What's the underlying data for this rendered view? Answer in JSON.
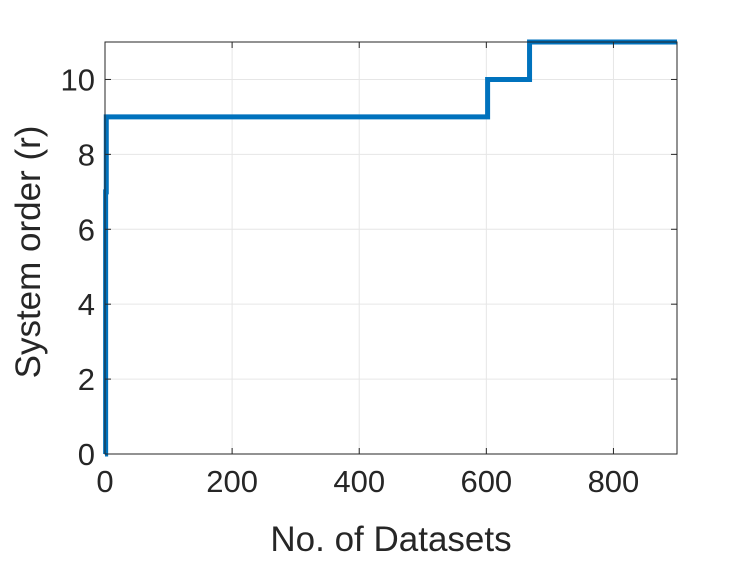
{
  "chart_data": {
    "type": "line",
    "title": "",
    "xlabel": "No. of Datasets",
    "ylabel": "System order (r)",
    "xlim": [
      0,
      900
    ],
    "ylim": [
      0,
      11
    ],
    "xticks": [
      0,
      200,
      400,
      600,
      800
    ],
    "yticks": [
      0,
      2,
      4,
      6,
      8,
      10
    ],
    "grid": true,
    "legend": "none",
    "series": [
      {
        "color": "#0072bd",
        "step": true,
        "x": [
          0,
          1,
          2,
          602,
          668,
          900
        ],
        "y": [
          0,
          7,
          9,
          10,
          11,
          11
        ]
      }
    ]
  }
}
